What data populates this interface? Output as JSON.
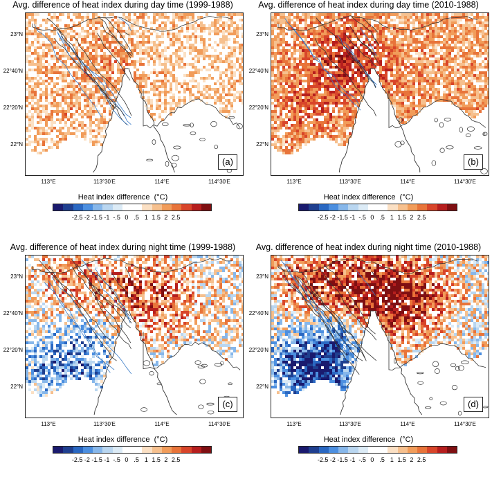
{
  "panels": [
    {
      "title": "Avg. difference of heat index during day time (1999-1988)",
      "label": "(a)",
      "mode": "day",
      "intensity": 0.55
    },
    {
      "title": "Avg. difference of heat index during day time (2010-1988)",
      "label": "(b)",
      "mode": "day",
      "intensity": 0.95
    },
    {
      "title": "Avg. difference of heat index during night time (1999-1988)",
      "label": "(c)",
      "mode": "night",
      "intensity": 0.6
    },
    {
      "title": "Avg. difference of heat index during night time (2010-1988)",
      "label": "(d)",
      "mode": "night",
      "intensity": 1.0
    }
  ],
  "lat_ticks": [
    "23°N",
    "22°40'N",
    "22°20'N",
    "22°N"
  ],
  "lon_ticks": [
    "113°E",
    "113°30'E",
    "114°E",
    "114°30'E"
  ],
  "colorbar": {
    "title": "Heat index difference",
    "unit": "(°C)",
    "labels": [
      "-2.5",
      "-2",
      "-1.5",
      "-1",
      "-.5",
      "0",
      ".5",
      "1",
      "1.5",
      "2",
      "2.5"
    ],
    "colors": [
      "#1a1a6e",
      "#1f3f8f",
      "#2a68c2",
      "#4c8fe0",
      "#87b7ea",
      "#b9d6f0",
      "#dcebf6",
      "#ffffff",
      "#ffffff",
      "#fbe0c4",
      "#f6c08e",
      "#f19c5a",
      "#e8743a",
      "#d8452a",
      "#b61e1e",
      "#7f0f12"
    ]
  }
}
